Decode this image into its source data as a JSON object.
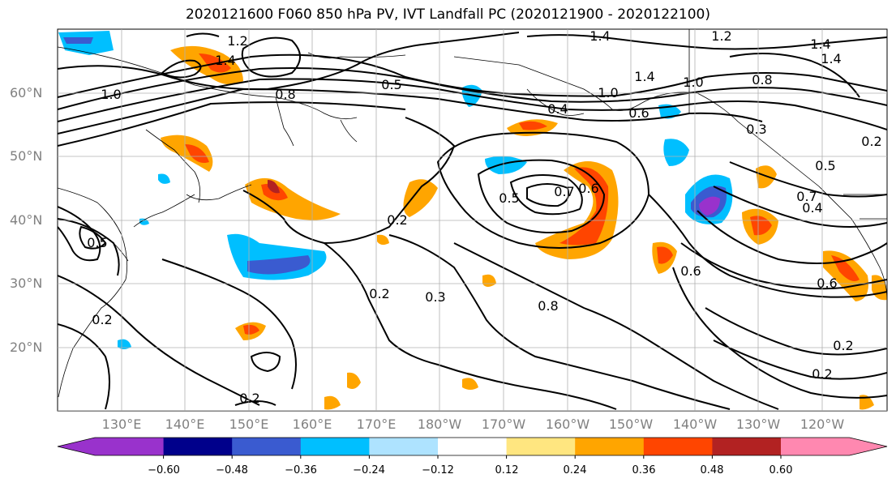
{
  "title": "2020121600 F060 850 hPa PV, IVT Landfall PC (2020121900 - 2020122100)",
  "lat_labels": [
    "60°N",
    "50°N",
    "40°N",
    "30°N",
    "20°N"
  ],
  "lon_labels": [
    "130°E",
    "140°E",
    "150°E",
    "160°E",
    "170°E",
    "180°W",
    "170°W",
    "160°W",
    "150°W",
    "140°W",
    "130°W",
    "120°W"
  ],
  "colorbar": {
    "colors": [
      "#9932cc",
      "#00008b",
      "#3a5bd0",
      "#00bfff",
      "#aee3ff",
      "#ffffff",
      "#ffe680",
      "#ffa500",
      "#ff4500",
      "#b22222",
      "#ff88b0"
    ],
    "tick_labels": [
      "−0.60",
      "−0.48",
      "−0.36",
      "−0.24",
      "−0.12",
      "0.12",
      "0.24",
      "0.36",
      "0.48",
      "0.60"
    ]
  },
  "contour_labels": [
    "1.2",
    "1.4",
    "1.4",
    "1.2",
    "1.4",
    "1.4",
    "1.0",
    "0.8",
    "1.0",
    "1.4",
    "1.0",
    "0.8",
    "0.5",
    "0.4",
    "0.6",
    "0.3",
    "0.2",
    "0.5",
    "0.7",
    "0.6",
    "0.7",
    "0.5",
    "0.4",
    "0.6",
    "0.2",
    "0.2",
    "0.3",
    "0.8",
    "0.6",
    "0.2",
    "0.2",
    "0.2",
    "0.5",
    "0.2"
  ],
  "colors": {
    "coast": "#000000",
    "contour": "#000000",
    "grid": "#b0b0b0"
  }
}
